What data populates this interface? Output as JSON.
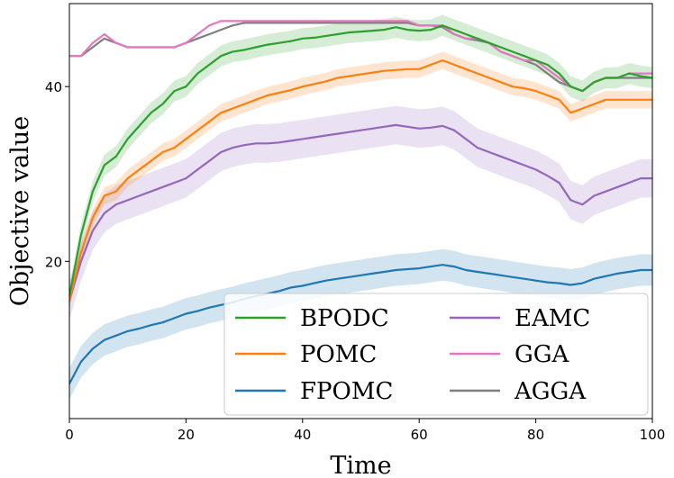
{
  "chart_data": {
    "type": "line",
    "title": "",
    "xlabel": "Time",
    "ylabel": "Objective value",
    "xlim": [
      0,
      100
    ],
    "ylim": [
      2,
      49.5
    ],
    "xticks": [
      0,
      20,
      40,
      60,
      80,
      100
    ],
    "yticks": [
      20,
      40
    ],
    "grid": false,
    "legend": {
      "placement": "lower-right",
      "columns": 2
    },
    "x": [
      0,
      2,
      4,
      6,
      8,
      10,
      12,
      14,
      16,
      18,
      20,
      22,
      24,
      26,
      28,
      30,
      32,
      34,
      36,
      38,
      40,
      42,
      44,
      46,
      48,
      50,
      52,
      54,
      56,
      58,
      60,
      62,
      64,
      66,
      68,
      70,
      72,
      74,
      76,
      78,
      80,
      82,
      84,
      86,
      88,
      90,
      92,
      94,
      96,
      98,
      100
    ],
    "series": [
      {
        "name": "BPODC",
        "color": "#2ca02c",
        "band": 1.2,
        "values": [
          16,
          23,
          28,
          31,
          32,
          34,
          35.5,
          37,
          38,
          39.5,
          40,
          41.5,
          42.5,
          43.5,
          44,
          44.2,
          44.5,
          44.8,
          45,
          45.2,
          45.5,
          45.6,
          45.8,
          46,
          46.2,
          46.3,
          46.4,
          46.5,
          46.8,
          46.5,
          46.4,
          46.5,
          47,
          46.5,
          46,
          45.5,
          45,
          44.5,
          44,
          43.5,
          43,
          42.5,
          41.5,
          40,
          39.5,
          40.5,
          41,
          41,
          41.5,
          41.2,
          41
        ]
      },
      {
        "name": "POMC",
        "color": "#ff7f0e",
        "band": 1.0,
        "values": [
          15.5,
          21,
          25,
          27.5,
          28,
          29.5,
          30.5,
          31.5,
          32.5,
          33,
          34,
          35,
          36,
          37,
          37.5,
          38,
          38.5,
          39,
          39.3,
          39.6,
          40,
          40.3,
          40.6,
          41,
          41.2,
          41.4,
          41.6,
          41.8,
          41.9,
          42,
          42,
          42.5,
          43,
          42.5,
          42,
          41.5,
          41,
          40.5,
          40,
          39.8,
          39.5,
          39,
          38.5,
          37,
          37.5,
          38,
          38.5,
          38.5,
          38.5,
          38.5,
          38.5
        ]
      },
      {
        "name": "FPOMC",
        "color": "#1f77b4",
        "band": 1.8,
        "values": [
          6,
          8.5,
          10,
          11,
          11.5,
          12,
          12.3,
          12.7,
          13,
          13.5,
          14,
          14.3,
          14.7,
          15,
          15.3,
          15.7,
          16,
          16.3,
          16.6,
          17,
          17.2,
          17.5,
          17.8,
          18,
          18.2,
          18.4,
          18.6,
          18.8,
          19,
          19.1,
          19.2,
          19.4,
          19.6,
          19.4,
          19,
          18.8,
          18.6,
          18.4,
          18.2,
          18,
          17.8,
          17.6,
          17.5,
          17.3,
          17.5,
          18,
          18.3,
          18.6,
          18.8,
          19,
          19
        ]
      },
      {
        "name": "EAMC",
        "color": "#9467bd",
        "band": 2.2,
        "values": [
          15.5,
          20,
          23.5,
          25.5,
          26.5,
          27,
          27.5,
          28,
          28.5,
          29,
          29.5,
          30.5,
          31.5,
          32.5,
          33,
          33.3,
          33.5,
          33.5,
          33.6,
          33.8,
          34,
          34.2,
          34.4,
          34.6,
          34.8,
          35,
          35.2,
          35.4,
          35.6,
          35.4,
          35.2,
          35.3,
          35.5,
          35,
          34,
          33,
          32.5,
          32,
          31.5,
          31,
          30.5,
          29.8,
          29,
          27,
          26.5,
          27.5,
          28,
          28.5,
          29,
          29.5,
          29.5
        ]
      },
      {
        "name": "GGA",
        "color": "#e377c2",
        "band": 0,
        "values": [
          43.5,
          43.5,
          45,
          46,
          45,
          44.5,
          44.5,
          44.5,
          44.5,
          44.5,
          45,
          46,
          47,
          47.5,
          47.5,
          47.5,
          47.5,
          47.5,
          47.5,
          47.5,
          47.5,
          47.5,
          47.5,
          47.5,
          47.5,
          47.5,
          47.5,
          47.5,
          47.5,
          47.5,
          47,
          47,
          47,
          46,
          45.5,
          45.5,
          45,
          44,
          43.5,
          43,
          43,
          42,
          41,
          40,
          39.5,
          40.5,
          41,
          41,
          41.5,
          41.5,
          41.5
        ]
      },
      {
        "name": "AGGA",
        "color": "#7f7f7f",
        "band": 0,
        "values": [
          43.5,
          43.5,
          44.5,
          45.5,
          45,
          44.5,
          44.5,
          44.5,
          44.5,
          44.5,
          45,
          45.5,
          46,
          46.5,
          47,
          47.3,
          47.3,
          47.3,
          47.3,
          47.3,
          47.3,
          47.3,
          47.3,
          47.3,
          47.3,
          47.3,
          47.3,
          47.3,
          47.3,
          47.3,
          47,
          47,
          46.8,
          46,
          45.5,
          45.3,
          45,
          44,
          43.5,
          43,
          42.5,
          41.5,
          40.5,
          40,
          39.5,
          40.5,
          41,
          41,
          41,
          41,
          41
        ]
      }
    ]
  }
}
